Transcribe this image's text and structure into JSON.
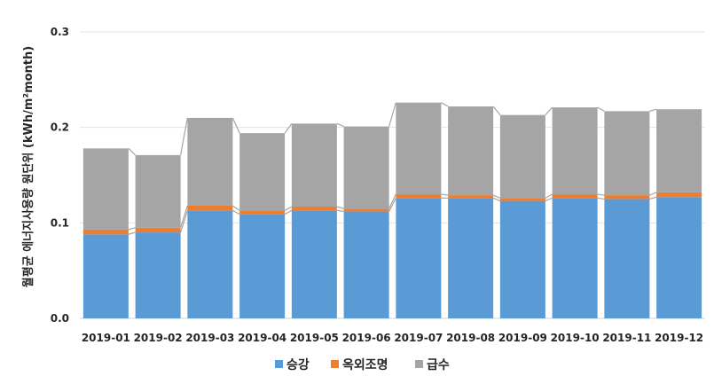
{
  "chart_data": {
    "type": "bar",
    "stacked": true,
    "series_lines": true,
    "categories": [
      "2019-01",
      "2019-02",
      "2019-03",
      "2019-04",
      "2019-05",
      "2019-06",
      "2019-07",
      "2019-08",
      "2019-09",
      "2019-10",
      "2019-11",
      "2019-12"
    ],
    "series": [
      {
        "name": "승강",
        "color": "#5B9BD5",
        "values": [
          0.088,
          0.09,
          0.113,
          0.109,
          0.113,
          0.112,
          0.126,
          0.126,
          0.123,
          0.126,
          0.125,
          0.127
        ]
      },
      {
        "name": "옥외조명",
        "color": "#ED7D31",
        "values": [
          0.005,
          0.005,
          0.005,
          0.004,
          0.004,
          0.003,
          0.004,
          0.003,
          0.003,
          0.004,
          0.004,
          0.005
        ]
      },
      {
        "name": "급수",
        "color": "#A5A5A5",
        "values": [
          0.085,
          0.076,
          0.092,
          0.081,
          0.087,
          0.086,
          0.096,
          0.093,
          0.087,
          0.091,
          0.088,
          0.087
        ]
      }
    ],
    "ylabel": "월평균 에너지사용량 원단위 (kWh/m²month)",
    "xlabel": "",
    "ylim": [
      0,
      0.3
    ],
    "yticks": [
      "0.0",
      "0.1",
      "0.2",
      "0.3"
    ],
    "ytick_values": [
      0,
      0.1,
      0.2,
      0.3
    ],
    "grid": true,
    "legend_position": "bottom"
  }
}
